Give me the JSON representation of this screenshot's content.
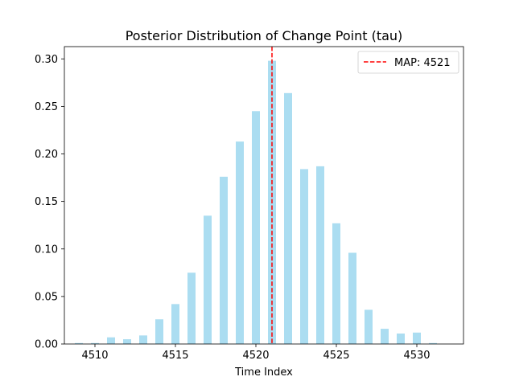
{
  "chart_data": {
    "type": "bar",
    "title": "Posterior Distribution of Change Point (tau)",
    "xlabel": "Time Index",
    "ylabel": "",
    "x": [
      4509,
      4510,
      4511,
      4512,
      4513,
      4514,
      4515,
      4516,
      4517,
      4518,
      4519,
      4520,
      4521,
      4522,
      4523,
      4524,
      4525,
      4526,
      4527,
      4528,
      4529,
      4530,
      4531
    ],
    "values": [
      0.001,
      0.001,
      0.007,
      0.005,
      0.009,
      0.026,
      0.042,
      0.075,
      0.135,
      0.176,
      0.213,
      0.245,
      0.298,
      0.264,
      0.184,
      0.187,
      0.127,
      0.096,
      0.036,
      0.016,
      0.011,
      0.012,
      0.001
    ],
    "xlim": [
      4508.1,
      4532.9
    ],
    "ylim": [
      0,
      0.3129
    ],
    "xticks": [
      4510,
      4515,
      4520,
      4525,
      4530
    ],
    "xtick_labels": [
      "4510",
      "4515",
      "4520",
      "4525",
      "4530"
    ],
    "yticks": [
      0.0,
      0.05,
      0.1,
      0.15,
      0.2,
      0.25,
      0.3
    ],
    "ytick_labels": [
      "0.00",
      "0.05",
      "0.10",
      "0.15",
      "0.20",
      "0.25",
      "0.30"
    ],
    "bar_color": "#87CEEB",
    "map_line": {
      "x": 4521,
      "label": "MAP: 4521",
      "color": "#ff0000",
      "style": "dashed"
    },
    "legend_position": "top-right",
    "grid": false
  }
}
